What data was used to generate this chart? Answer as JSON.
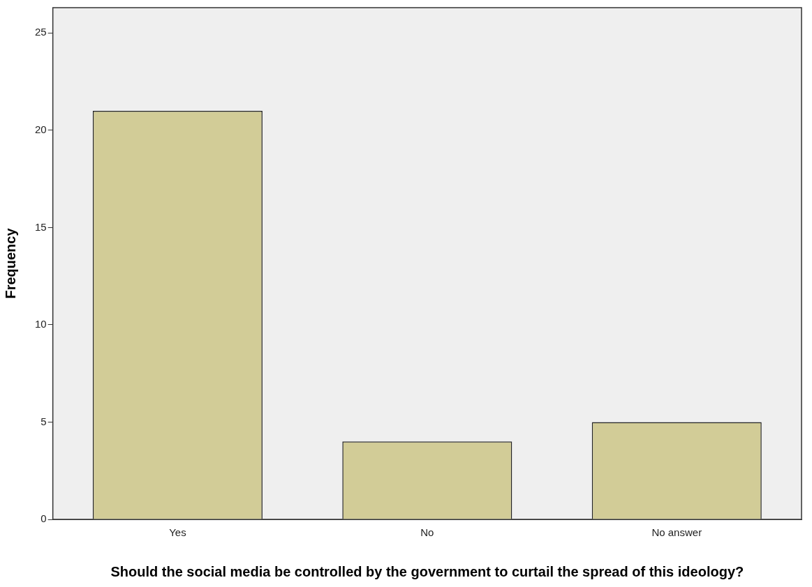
{
  "chart_data": {
    "type": "bar",
    "xlabel": "Should the social media be controlled by the government to curtail the spread of this ideology?",
    "ylabel": "Frequency",
    "categories": [
      "Yes",
      "No",
      "No answer"
    ],
    "values": [
      21,
      4,
      5
    ],
    "color": "#d2cc97",
    "ylim": [
      0,
      26.3
    ],
    "yticks": [
      0,
      5,
      10,
      15,
      20,
      25
    ],
    "grid": false,
    "legend": false
  }
}
